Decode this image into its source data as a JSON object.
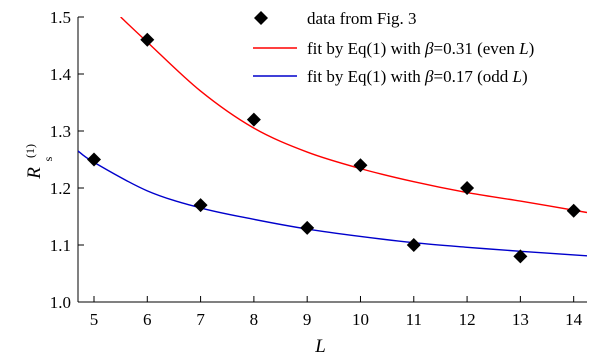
{
  "chart_data": {
    "type": "scatter",
    "xlabel": "L",
    "ylabel": {
      "main": "R",
      "superscript": "(1)",
      "subscript": "s"
    },
    "xlim": [
      4.7,
      14.25
    ],
    "ylim": [
      1.0,
      1.5
    ],
    "xticks": [
      5,
      6,
      7,
      8,
      9,
      10,
      11,
      12,
      13,
      14
    ],
    "yticks": [
      1.0,
      1.1,
      1.2,
      1.3,
      1.4,
      1.5
    ],
    "xtick_labels": [
      "5",
      "6",
      "7",
      "8",
      "9",
      "10",
      "11",
      "12",
      "13",
      "14"
    ],
    "ytick_labels": [
      "1.0",
      "1.1",
      "1.2",
      "1.3",
      "1.4",
      "1.5"
    ],
    "grid": false,
    "legend_position": "top-right",
    "series": [
      {
        "name": "data from Fig. 3",
        "kind": "points",
        "marker": "diamond",
        "color": "#000000",
        "x": [
          5,
          6,
          7,
          8,
          9,
          10,
          11,
          12,
          13,
          14
        ],
        "y": [
          1.25,
          1.46,
          1.17,
          1.32,
          1.13,
          1.24,
          1.1,
          1.2,
          1.08,
          1.16
        ]
      },
      {
        "name_parts": [
          "fit by Eq(1) with ",
          "β",
          "=0.31 (even ",
          "L",
          ")"
        ],
        "kind": "curve",
        "color": "#ff0000",
        "x": [
          5.5,
          6,
          7,
          8,
          9,
          10,
          11,
          12,
          13,
          14.25
        ],
        "y": [
          1.5,
          1.456,
          1.37,
          1.305,
          1.263,
          1.234,
          1.211,
          1.192,
          1.177,
          1.157
        ]
      },
      {
        "name_parts": [
          "fit by Eq(1) with ",
          "β",
          "=0.17 (odd ",
          "L",
          ")"
        ],
        "kind": "curve",
        "color": "#0000cc",
        "x": [
          4.7,
          5,
          6,
          7,
          8,
          9,
          10,
          11,
          12,
          13,
          14.25
        ],
        "y": [
          1.265,
          1.245,
          1.195,
          1.165,
          1.145,
          1.128,
          1.115,
          1.104,
          1.096,
          1.089,
          1.081
        ]
      }
    ]
  }
}
